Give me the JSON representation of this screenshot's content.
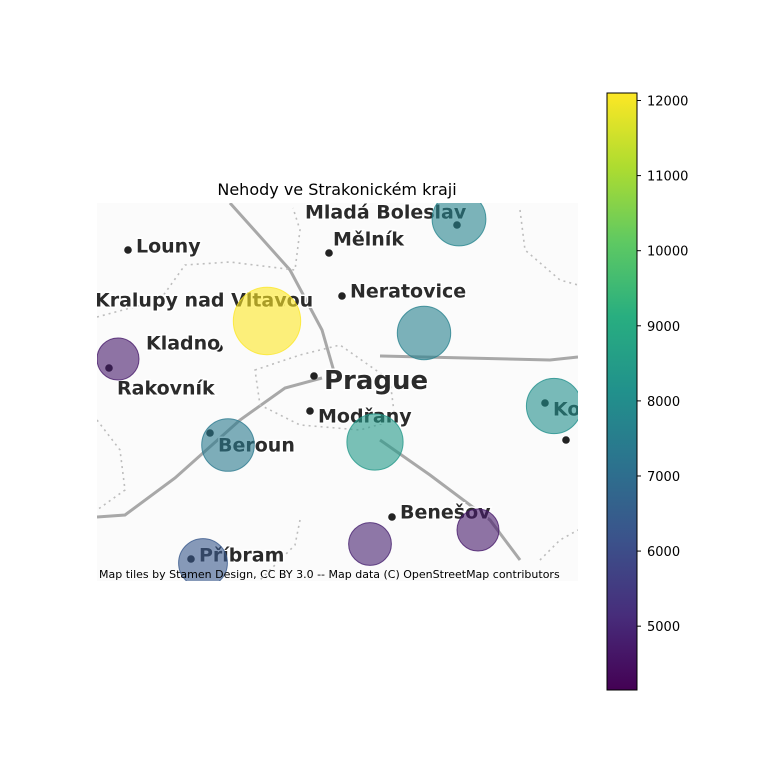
{
  "chart_data": {
    "type": "scatter",
    "title": "Nehody ve Strakonickém kraji",
    "attribution": "Map tiles by Stamen Design, CC BY 3.0 -- Map data (C) OpenStreetMap contributors",
    "colormap": "viridis",
    "colorbar": {
      "min": 4150,
      "max": 12100,
      "ticks": [
        5000,
        6000,
        7000,
        8000,
        9000,
        10000,
        11000,
        12000
      ]
    },
    "basemap_labels": [
      {
        "name": "Mladá Boleslav",
        "font": 19
      },
      {
        "name": "Louny",
        "font": 19
      },
      {
        "name": "Mělník",
        "font": 19
      },
      {
        "name": "Neratovice",
        "font": 19
      },
      {
        "name": "Kralupy nad Vltavou",
        "font": 19
      },
      {
        "name": "Kladno",
        "font": 19
      },
      {
        "name": "Prague",
        "font": 26
      },
      {
        "name": "Rakovník",
        "font": 19
      },
      {
        "name": "Modřany",
        "font": 19
      },
      {
        "name": "Beroun",
        "font": 19
      },
      {
        "name": "Kolín",
        "font": 19
      },
      {
        "name": "Benešov",
        "font": 19
      },
      {
        "name": "Příbram",
        "font": 19
      }
    ],
    "points": [
      {
        "value": 12100,
        "size": 12100
      },
      {
        "value": 4700,
        "size": 4700
      },
      {
        "value": 7700,
        "size": 7700
      },
      {
        "value": 7600,
        "size": 7600
      },
      {
        "value": 8100,
        "size": 8100
      },
      {
        "value": 8400,
        "size": 8400
      },
      {
        "value": 7350,
        "size": 7350
      },
      {
        "value": 4850,
        "size": 4850
      },
      {
        "value": 4700,
        "size": 4700
      },
      {
        "value": 6350,
        "size": 6350
      }
    ]
  }
}
